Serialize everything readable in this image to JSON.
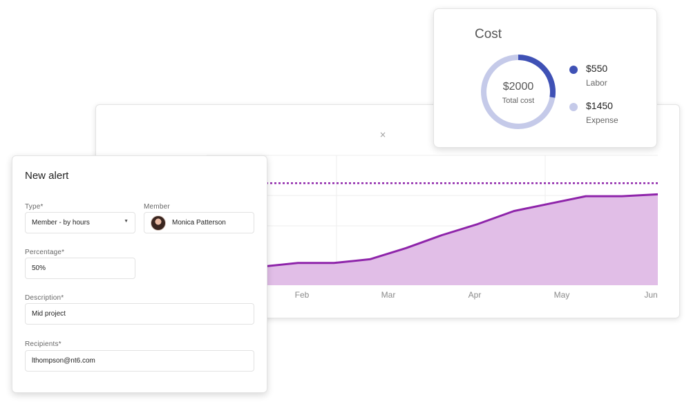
{
  "chart": {
    "close_symbol": "×",
    "x_labels": [
      "Feb",
      "Mar",
      "Apr",
      "May",
      "Jun"
    ],
    "colors": {
      "line": "#8e24aa",
      "area": "#e1bee7",
      "threshold": "#8e24aa",
      "grid": "#eeeeee"
    },
    "threshold": 55,
    "series": [
      {
        "x": "Jan",
        "y": 10
      },
      {
        "x": "Jan 15",
        "y": 12
      },
      {
        "x": "Feb",
        "y": 12
      },
      {
        "x": "Feb 15",
        "y": 14
      },
      {
        "x": "Feb 28",
        "y": 20
      },
      {
        "x": "Mar",
        "y": 27
      },
      {
        "x": "Mar 15",
        "y": 33
      },
      {
        "x": "Apr",
        "y": 40
      },
      {
        "x": "Apr 15",
        "y": 44
      },
      {
        "x": "May",
        "y": 48
      },
      {
        "x": "May 15",
        "y": 48
      },
      {
        "x": "Jun",
        "y": 49
      }
    ]
  },
  "cost": {
    "title": "Cost",
    "total_value": "$2000",
    "total_label": "Total cost",
    "total": 2000,
    "items": [
      {
        "amount": "$550",
        "label": "Labor",
        "value": 550,
        "color": "#3f51b5"
      },
      {
        "amount": "$1450",
        "label": "Expense",
        "value": 1450,
        "color": "#c5cae9"
      }
    ]
  },
  "alert": {
    "title": "New alert",
    "type_label": "Type*",
    "type_value": "Member - by hours",
    "member_label": "Member",
    "member_value": "Monica Patterson",
    "percentage_label": "Percentage*",
    "percentage_value": "50%",
    "description_label": "Description*",
    "description_value": "Mid project",
    "recipients_label": "Recipients*",
    "recipients_value": "lthompson@nt6.com"
  }
}
